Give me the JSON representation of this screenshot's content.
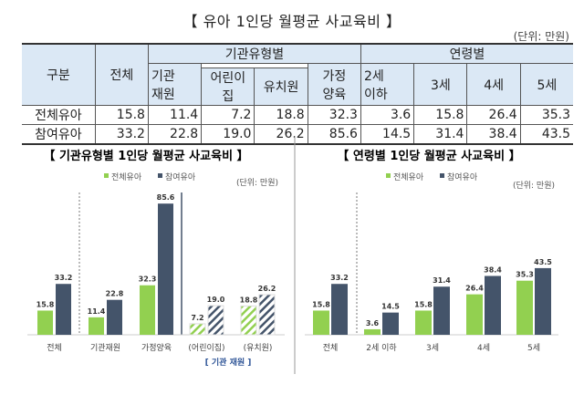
{
  "table": {
    "title": "【 유아 1인당 월평균 사교육비 】",
    "unit": "(단위: 만원)",
    "header": {
      "category": "구분",
      "total": "전체",
      "by_institution": "기관유형별",
      "institution": "기관\n재원",
      "daycare": "어린이집",
      "kindergarten": "유치원",
      "home": "가정\n양육",
      "by_age": "연령별",
      "age2": "2세\n이하",
      "age3": "3세",
      "age4": "4세",
      "age5": "5세"
    },
    "rows": [
      {
        "label": "전체유아",
        "values": [
          "15.8",
          "11.4",
          "7.2",
          "18.8",
          "32.3",
          "3.6",
          "15.8",
          "26.4",
          "35.3"
        ]
      },
      {
        "label": "참여유아",
        "values": [
          "33.2",
          "22.8",
          "19.0",
          "26.2",
          "85.6",
          "14.5",
          "31.4",
          "38.4",
          "43.5"
        ]
      }
    ]
  },
  "chart_data": [
    {
      "type": "bar",
      "title": "【 기관유형별 1인당 월평균 사교육비 】",
      "unit": "(단위: 만원)",
      "categories": [
        "전체",
        "기관재원",
        "가정양육",
        "(어린이집)",
        "(유치원)"
      ],
      "group_label": "[ 기관 재원 ]",
      "hatched_categories": [
        "(어린이집)",
        "(유치원)"
      ],
      "series": [
        {
          "name": "전체유아",
          "color": "#92d050",
          "values": [
            15.8,
            11.4,
            32.3,
            7.2,
            18.8
          ]
        },
        {
          "name": "참여유아",
          "color": "#44546a",
          "values": [
            33.2,
            22.8,
            85.6,
            19.0,
            26.2
          ]
        }
      ],
      "legend": "top",
      "grid": false
    },
    {
      "type": "bar",
      "title": "【 연령별 1인당 월평균 사교육비 】",
      "unit": "(단위: 만원)",
      "categories": [
        "전체",
        "2세 이하",
        "3세",
        "4세",
        "5세"
      ],
      "series": [
        {
          "name": "전체유아",
          "color": "#92d050",
          "values": [
            15.8,
            3.6,
            15.8,
            26.4,
            35.3
          ]
        },
        {
          "name": "참여유아",
          "color": "#44546a",
          "values": [
            33.2,
            14.5,
            31.4,
            38.4,
            43.5
          ]
        }
      ],
      "legend": "top",
      "grid": false
    }
  ]
}
